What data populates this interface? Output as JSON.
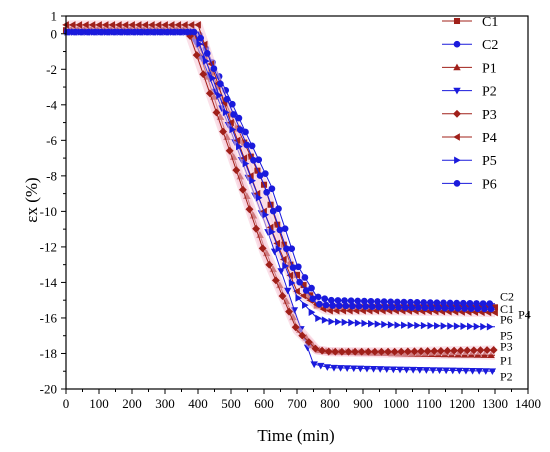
{
  "chart_data": {
    "type": "line",
    "xlabel": "Time (min)",
    "ylabel": "εx (%)",
    "xlim": [
      0,
      1400
    ],
    "ylim": [
      -20,
      1
    ],
    "xticks": [
      0,
      100,
      200,
      300,
      400,
      500,
      600,
      700,
      800,
      900,
      1000,
      1100,
      1200,
      1300,
      1400
    ],
    "yticks": [
      1,
      0,
      -2,
      -4,
      -6,
      -8,
      -10,
      -12,
      -14,
      -16,
      -18,
      -20
    ],
    "x_tick_labels": [
      "0",
      "100",
      "200",
      "300",
      "400",
      "500",
      "600",
      "700",
      "800",
      "900",
      "1000",
      "1100",
      "1200",
      "1300",
      "1400"
    ],
    "y_tick_labels": [
      "1",
      "0",
      "-2",
      "-4",
      "-6",
      "-8",
      "-10",
      "-12",
      "-14",
      "-16",
      "-18",
      "-20"
    ],
    "legend_position": "top-right",
    "series": [
      {
        "name": "C1",
        "color": "#a0201a",
        "marker": "square",
        "x": [
          0,
          380,
          600,
          680,
          760,
          800,
          1000,
          1300
        ],
        "y": [
          0.2,
          0.2,
          -8.5,
          -13.0,
          -15.3,
          -15.4,
          -15.4,
          -15.4
        ]
      },
      {
        "name": "C2",
        "color": "#1a1adc",
        "marker": "circle",
        "x": [
          0,
          400,
          620,
          700,
          760,
          800,
          1000,
          1300
        ],
        "y": [
          0.1,
          0.1,
          -8.5,
          -13.0,
          -14.8,
          -15.0,
          -15.1,
          -15.2
        ]
      },
      {
        "name": "P1",
        "color": "#a0201a",
        "marker": "triangle-up",
        "x": [
          0,
          380,
          500,
          600,
          700,
          760,
          800,
          1000,
          1300
        ],
        "y": [
          0.3,
          0.3,
          -6.5,
          -12.0,
          -16.5,
          -17.8,
          -17.9,
          -18.0,
          -18.1
        ]
      },
      {
        "name": "P2",
        "color": "#1a1adc",
        "marker": "triangle-down",
        "x": [
          0,
          380,
          500,
          600,
          700,
          750,
          800,
          1000,
          1300
        ],
        "y": [
          0.1,
          0.1,
          -5.5,
          -10.5,
          -16.0,
          -18.6,
          -18.8,
          -18.9,
          -19.0
        ]
      },
      {
        "name": "P3",
        "color": "#a0201a",
        "marker": "diamond",
        "x": [
          0,
          370,
          500,
          600,
          700,
          760,
          800,
          1000,
          1300
        ],
        "y": [
          0.2,
          0.2,
          -6.8,
          -12.3,
          -16.7,
          -17.8,
          -17.9,
          -17.9,
          -17.8
        ]
      },
      {
        "name": "P4",
        "color": "#a0201a",
        "marker": "triangle-left",
        "x": [
          0,
          400,
          500,
          600,
          700,
          780,
          800,
          1000,
          1300
        ],
        "y": [
          0.5,
          0.5,
          -5.0,
          -10.0,
          -14.5,
          -15.5,
          -15.6,
          -15.6,
          -15.7
        ]
      },
      {
        "name": "P5",
        "color": "#1a1adc",
        "marker": "triangle-right",
        "x": [
          0,
          390,
          500,
          600,
          700,
          760,
          800,
          1000,
          1300
        ],
        "y": [
          0.1,
          0.1,
          -5.2,
          -10.0,
          -14.8,
          -16.0,
          -16.2,
          -16.4,
          -16.5
        ]
      },
      {
        "name": "P6",
        "color": "#1a1adc",
        "marker": "hexagon",
        "x": [
          0,
          400,
          500,
          600,
          700,
          760,
          800,
          1000,
          1300
        ],
        "y": [
          0.1,
          0.1,
          -4.2,
          -8.5,
          -13.8,
          -15.2,
          -15.3,
          -15.4,
          -15.5
        ]
      }
    ],
    "end_labels": [
      {
        "text": "C2",
        "x": 1315,
        "y": -14.8
      },
      {
        "text": "C1",
        "x": 1315,
        "y": -15.5
      },
      {
        "text": "P6",
        "x": 1315,
        "y": -16.1
      },
      {
        "text": "P4",
        "x": 1370,
        "y": -15.8
      },
      {
        "text": "P5",
        "x": 1315,
        "y": -17.0
      },
      {
        "text": "P3",
        "x": 1315,
        "y": -17.6
      },
      {
        "text": "P1",
        "x": 1315,
        "y": -18.4
      },
      {
        "text": "P2",
        "x": 1315,
        "y": -19.3
      }
    ]
  }
}
